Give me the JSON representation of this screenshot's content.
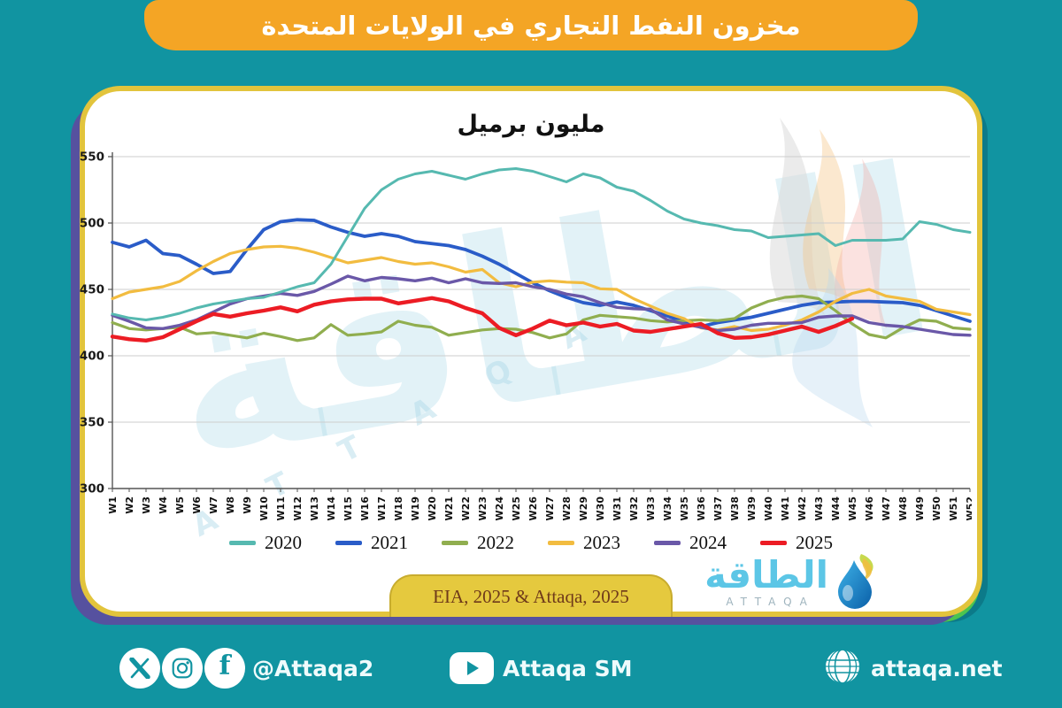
{
  "title_bar": {
    "text": "مخزون النفط التجاري في الولايات المتحدة"
  },
  "colors": {
    "background": "#1194A1",
    "title_bar": "#F4A525",
    "card_border": "#E2C43C",
    "source_pill": "#E5C93E",
    "accent_green": "#4CC44F",
    "accent_purple": "#56519F"
  },
  "chart_data": {
    "type": "line",
    "title": "مليون برميل",
    "xlabel": "",
    "ylabel": "",
    "ylim": [
      300,
      550
    ],
    "yticks": [
      300,
      350,
      400,
      450,
      500,
      550
    ],
    "grid": true,
    "legend_position": "bottom",
    "x_labels": [
      "W1",
      "W2",
      "W3",
      "W4",
      "W5",
      "W6",
      "W7",
      "W8",
      "W9",
      "W10",
      "W11",
      "W12",
      "W13",
      "W14",
      "W15",
      "W16",
      "W17",
      "W18",
      "W19",
      "W20",
      "W21",
      "W22",
      "W23",
      "W24",
      "W25",
      "W26",
      "W27",
      "W28",
      "W29",
      "W30",
      "W31",
      "W32",
      "W33",
      "W34",
      "W35",
      "W36",
      "W37",
      "W38",
      "W39",
      "W40",
      "W41",
      "W42",
      "W43",
      "W44",
      "W45",
      "W46",
      "W47",
      "W48",
      "W49",
      "W50",
      "W51",
      "W52"
    ],
    "series": [
      {
        "name": "2020",
        "color": "#56B9B0",
        "values": [
          431.5,
          428.5,
          427,
          429,
          432,
          436,
          439,
          441,
          443,
          444,
          448,
          452,
          455,
          469,
          490,
          511,
          525,
          533,
          537,
          539,
          536,
          533,
          537,
          540,
          541,
          539,
          535,
          531,
          537,
          534,
          527,
          524,
          517,
          509,
          503,
          500,
          498,
          495,
          494,
          489,
          490,
          491,
          492,
          483,
          487,
          487,
          487,
          488,
          501,
          499,
          495,
          493
        ]
      },
      {
        "name": "2021",
        "color": "#2A5CC8",
        "values": [
          485.5,
          482,
          487,
          477,
          475.5,
          469,
          462,
          463.5,
          480,
          495,
          501,
          502.5,
          502,
          497,
          493,
          490,
          492,
          490,
          486,
          484.5,
          483,
          480,
          475,
          469,
          462,
          455,
          449,
          444,
          440,
          438,
          440.5,
          438,
          434,
          430,
          425.5,
          422,
          425,
          427,
          429,
          432,
          435,
          438,
          440,
          440.5,
          441,
          441,
          440.5,
          440,
          438,
          434,
          430,
          426
        ]
      },
      {
        "name": "2022",
        "color": "#90AE4F",
        "values": [
          425,
          420.5,
          419.5,
          420.5,
          421.5,
          416.5,
          417.5,
          415.5,
          413.5,
          417,
          414.5,
          411.5,
          413.5,
          423.5,
          415.5,
          416.5,
          418,
          426,
          423,
          421.5,
          415.5,
          417.5,
          419.5,
          420.5,
          420,
          417.5,
          413.5,
          416.5,
          427,
          430.5,
          429.5,
          428.5,
          426.5,
          425.5,
          426.5,
          427,
          426.5,
          428,
          436,
          441,
          444,
          445,
          443,
          434,
          424,
          416,
          413.5,
          421,
          427,
          426,
          421,
          420
        ]
      },
      {
        "name": "2023",
        "color": "#F2BC40",
        "values": [
          443,
          448,
          450,
          452,
          456,
          464,
          471,
          477,
          480,
          482,
          482.5,
          481,
          478,
          474,
          470,
          472,
          474,
          471,
          469,
          470,
          467,
          463,
          465,
          455,
          452,
          455.5,
          456.5,
          455.5,
          455,
          450.5,
          450,
          443,
          437.5,
          432,
          428,
          421,
          419.5,
          422,
          419,
          420,
          423,
          427,
          433,
          441,
          447,
          450,
          445,
          443,
          441,
          435,
          433,
          431
        ]
      },
      {
        "name": "2024",
        "color": "#6A58A8",
        "values": [
          430.5,
          426,
          421,
          420.5,
          423,
          427,
          433,
          439,
          443,
          445,
          447,
          445.5,
          448.5,
          454,
          460,
          456.5,
          459,
          458,
          456.5,
          458.5,
          455,
          458,
          455,
          454.5,
          455,
          452,
          450,
          446.5,
          444.5,
          440,
          436.5,
          435.5,
          435,
          427,
          424,
          421.5,
          419,
          420,
          423,
          424.5,
          424.5,
          425,
          429,
          430,
          430,
          425,
          423,
          422,
          420,
          418,
          416,
          415.5
        ]
      },
      {
        "name": "2025",
        "color": "#EC1C24",
        "values": [
          414.5,
          412.5,
          411.5,
          414,
          420,
          426,
          431.5,
          429.5,
          432,
          434,
          436.5,
          433.5,
          438.5,
          441,
          442.5,
          443,
          443,
          439.5,
          441.5,
          443.5,
          441,
          436,
          432,
          421,
          415.5,
          420.5,
          426.5,
          423,
          425,
          422,
          424,
          419,
          418,
          420,
          422,
          424,
          417,
          413.5,
          414,
          416,
          419,
          422,
          418,
          422.5,
          428
        ]
      }
    ]
  },
  "watermark": {
    "arabic": "الطاقة",
    "latin": "A T T A Q A"
  },
  "source": {
    "text": "EIA, 2025 & Attaqa, 2025"
  },
  "logo": {
    "arabic": "الطاقة",
    "latin": "ATTAQA"
  },
  "footer": {
    "handle": "@Attaqa2",
    "youtube": "Attaqa SM",
    "website": "attaqa.net"
  }
}
